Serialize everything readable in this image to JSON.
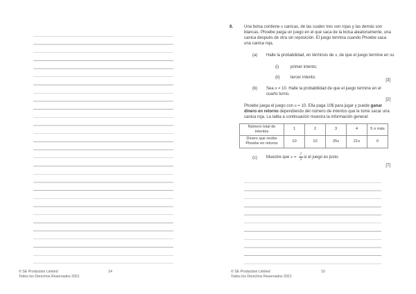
{
  "left_page": {
    "footer": {
      "copyright": "© SE Production Limited",
      "rights": "Todos los Derechos Reservados 2021",
      "page_number": "14"
    }
  },
  "right_page": {
    "question": {
      "number": "8.",
      "intro": {
        "pre": "Una bolsa contiene ",
        "var": "n",
        "post": " canicas, de las cuales tres son rojas y las demás son blancas. Phoebe juega un juego en el que saca de la bolsa aleatoriamente, una canica después de otra sin reposición. El juego termina cuando Phoebe saca una canica roja."
      },
      "part_a": {
        "label": "(a)",
        "pre": "Halle la probabilidad, en términos de ",
        "var": "n",
        "post": ", de que el juego termine en su",
        "sub_i": {
          "label": "(i)",
          "text": "primer intento;"
        },
        "sub_ii": {
          "label": "(ii)",
          "text": "tercer intento."
        },
        "marks": "[3]"
      },
      "part_b": {
        "label": "(b)",
        "pre": "Sea ",
        "var": "n",
        "post": " = 10. Halle la probabilidad de que el juego termine en el cuarto turno.",
        "marks": "[2]"
      },
      "game_paragraph": {
        "pre": "Phoebe juega el juego con ",
        "var": "n",
        "mid": " = 10. Ella paga 10$ para jugar y puede ",
        "bold": "ganar dinero en retorno",
        "post": " dependiendo del número de intentos que le tome sacar una canica roja. La tabla a continuación muestra la información general:"
      },
      "table": {
        "row1_header": "Número total de intentos",
        "row2_header": "Dinero que recibe Phoebe en retorno",
        "row1_values": [
          "1",
          "2",
          "3",
          "4",
          "5 o más"
        ],
        "row2_values": [
          "10",
          "10",
          "25x",
          "21x",
          "0"
        ]
      },
      "part_c": {
        "label": "(c)",
        "pre": "Muestre que",
        "var": "x",
        "eq": "=",
        "frac_num": "2",
        "frac_den": "3",
        "post": "si el juego es justo.",
        "marks": "[7]"
      }
    },
    "footer": {
      "copyright": "© SE Production Limited",
      "rights": "Todos los Derechos Reservados 2021",
      "page_number": "15"
    }
  }
}
